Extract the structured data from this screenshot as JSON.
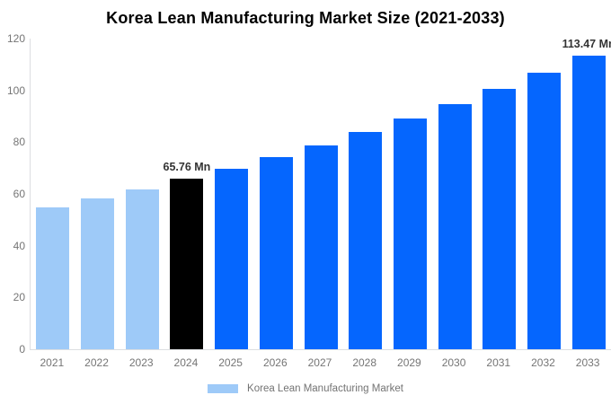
{
  "title": "Korea Lean Manufacturing Market Size (2021-2033)",
  "chart_data": {
    "type": "bar",
    "title": "Korea Lean Manufacturing Market Size (2021-2033)",
    "categories": [
      "2021",
      "2022",
      "2023",
      "2024",
      "2025",
      "2026",
      "2027",
      "2028",
      "2029",
      "2030",
      "2031",
      "2032",
      "2033"
    ],
    "values": [
      54.82,
      58.25,
      61.89,
      65.76,
      69.87,
      74.24,
      78.88,
      83.81,
      89.05,
      94.61,
      100.53,
      106.81,
      113.47
    ],
    "point_labels": [
      "",
      "",
      "",
      "65.76 Mn",
      "",
      "",
      "",
      "",
      "",
      "",
      "",
      "",
      "113.47 Mn"
    ],
    "bar_color_keys": [
      "historical",
      "historical",
      "historical",
      "base_year",
      "forecast",
      "forecast",
      "forecast",
      "forecast",
      "forecast",
      "forecast",
      "forecast",
      "forecast",
      "forecast"
    ],
    "xlabel": "",
    "ylabel": "",
    "ylim": [
      0,
      120
    ],
    "yticks": [
      0,
      20,
      40,
      60,
      80,
      100,
      120
    ],
    "grid": false,
    "legend": {
      "position": "bottom",
      "label": "Korea Lean Manufacturing Market",
      "swatch_color": "#9ECAF8"
    }
  },
  "colors": {
    "historical": "#9ECAF8",
    "base_year": "#000000",
    "forecast": "#0566FE",
    "axis_line": "#dcdee1",
    "tick_text": "#757575",
    "point_label_text": "#333333",
    "title_text": "#000000",
    "legend_text": "#737373",
    "background": "#ffffff"
  }
}
